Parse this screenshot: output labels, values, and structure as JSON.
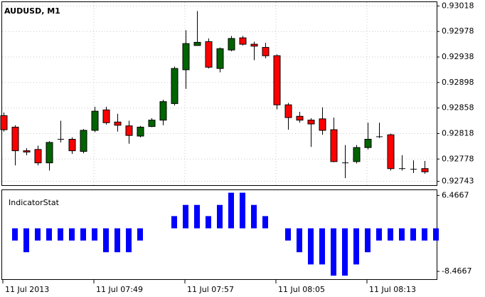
{
  "chart_data": [
    {
      "type": "candlestick",
      "title": "AUDUSD, M1",
      "categories": [
        "11 Jul 2013",
        null,
        null,
        null,
        null,
        null,
        null,
        null,
        "11 Jul 07:49",
        null,
        null,
        null,
        null,
        null,
        null,
        null,
        "11 Jul 07:57",
        null,
        null,
        null,
        null,
        null,
        null,
        null,
        "11 Jul 08:05",
        null,
        null,
        null,
        null,
        null,
        null,
        null,
        "11 Jul 08:13",
        null,
        null,
        null,
        null,
        null,
        null
      ],
      "open": [
        0.92846,
        0.92828,
        0.92791,
        0.92793,
        0.92772,
        0.92809,
        0.92809,
        0.9279,
        0.92823,
        0.92855,
        0.92836,
        0.9283,
        0.92814,
        0.92829,
        0.92839,
        0.92865,
        0.92918,
        0.92956,
        0.92962,
        0.9292,
        0.92949,
        0.92968,
        0.92958,
        0.92953,
        0.9294,
        0.92863,
        0.92845,
        0.92839,
        0.92841,
        0.92824,
        0.92772,
        0.92774,
        0.92796,
        0.92813,
        0.92816,
        0.92763,
        0.92762,
        0.92763,
        null
      ],
      "high": [
        0.92851,
        0.92831,
        0.92795,
        0.92799,
        0.92806,
        0.92838,
        0.92812,
        0.92825,
        0.9286,
        0.9286,
        0.92849,
        0.92838,
        0.9283,
        0.92842,
        0.92871,
        0.92923,
        0.9298,
        0.9301,
        0.92967,
        0.92953,
        0.92971,
        0.92971,
        0.92962,
        0.9296,
        0.92942,
        0.92866,
        0.92852,
        0.92842,
        0.92859,
        0.92843,
        0.928,
        0.928,
        0.92835,
        0.92835,
        0.92818,
        0.92784,
        0.92776,
        0.92775,
        null
      ],
      "low": [
        0.92821,
        0.92768,
        0.92784,
        0.92768,
        0.9276,
        0.92804,
        0.92786,
        0.92787,
        0.9282,
        0.92832,
        0.92821,
        0.92802,
        0.92812,
        0.92828,
        0.92831,
        0.92862,
        0.92888,
        0.92956,
        0.9292,
        0.92914,
        0.92947,
        0.92956,
        0.92933,
        0.92936,
        0.92856,
        0.92824,
        0.92835,
        0.92797,
        0.92816,
        0.92773,
        0.92748,
        0.92771,
        0.92793,
        0.92811,
        0.9276,
        0.9276,
        0.92756,
        0.92755,
        null
      ],
      "close": [
        0.92824,
        0.92791,
        0.92789,
        0.92772,
        0.92804,
        0.92809,
        0.92791,
        0.92823,
        0.92853,
        0.92835,
        0.92831,
        0.92815,
        0.92828,
        0.92839,
        0.92868,
        0.9292,
        0.92959,
        0.92961,
        0.92922,
        0.92951,
        0.92967,
        0.92958,
        0.92955,
        0.9294,
        0.92863,
        0.92843,
        0.92839,
        0.92833,
        0.92823,
        0.92774,
        0.92772,
        0.92796,
        0.92809,
        0.92813,
        0.92763,
        0.92763,
        0.92762,
        0.92758,
        null
      ],
      "up_color": "#006400",
      "down_color": "#ff0000",
      "ylim": [
        0.92737,
        0.93024
      ],
      "yticks": [
        0.93018,
        0.92978,
        0.92938,
        0.92898,
        0.92858,
        0.92818,
        0.92778,
        0.92743
      ],
      "grid": true
    },
    {
      "type": "bar",
      "title": "IndicatorStat",
      "values": [
        null,
        -2.4,
        -4.7,
        -2.4,
        -2.4,
        -2.4,
        -2.4,
        -2.4,
        -2.4,
        -4.7,
        -4.7,
        -4.7,
        -2.4,
        0,
        0,
        2.4,
        4.6,
        4.6,
        2.4,
        4.6,
        7.0,
        7.0,
        4.6,
        2.4,
        0,
        -2.4,
        -4.7,
        -7.1,
        -7.1,
        -9.3,
        -9.3,
        -7.1,
        -4.7,
        -2.4,
        -2.4,
        -2.4,
        -2.4,
        -2.4,
        -2.4
      ],
      "color": "#0000ff",
      "ylim": [
        -10,
        7.5
      ],
      "yticks": [
        6.4667,
        -8.4667
      ]
    }
  ]
}
